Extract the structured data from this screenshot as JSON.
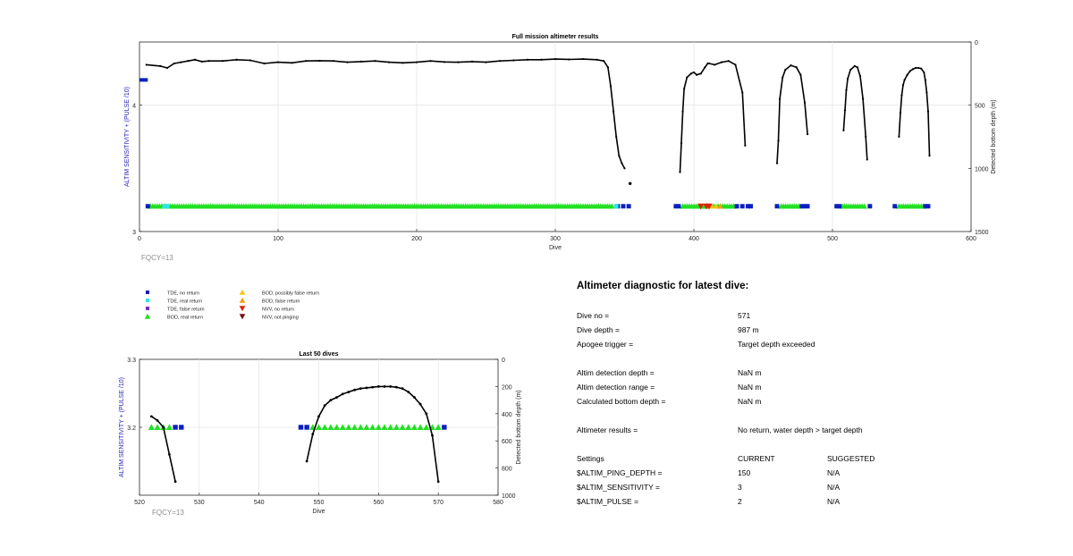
{
  "colors": {
    "axis": "#262626",
    "grid": "#e6e6e6",
    "left_axis_label": "#1f1fb8",
    "fqcy": "#8c8c8c",
    "tde_no_return": "#0a1fbf",
    "tde_real_return": "#2ee6e6",
    "tde_false_return": "#7a2bd6",
    "bod_real_return": "#22e022",
    "bod_possibly_false": "#f5c518",
    "bod_false_return": "#f59b18",
    "nvv_no_return": "#e0200a",
    "nvv_not_pinging": "#7a0c0c",
    "depth_line": "#000000"
  },
  "chart_data": [
    {
      "type": "scatter",
      "name": "full_mission",
      "title": "Full mission altimeter results",
      "xlabel": "Dive",
      "ylabel_left": "ALTIM SENSITIVITY + (PULSE /10)",
      "ylabel_right": "Detected bottom depth (m)",
      "xlim": [
        0,
        600
      ],
      "ylim_left": [
        3,
        4.5
      ],
      "ylim_right": [
        0,
        1500
      ],
      "right_reversed": true,
      "x_ticks": [
        "0",
        "100",
        "200",
        "300",
        "400",
        "500",
        "600"
      ],
      "y_left_ticks": [
        "3",
        "4"
      ],
      "y_right_ticks": [
        "0",
        "500",
        "1000",
        "1500"
      ],
      "grid": true,
      "annotation": "FQCY=13",
      "early_settings": {
        "x": [
          0,
          6
        ],
        "y": 4.2
      },
      "depth_segments": [
        {
          "x": [
            5,
            15,
            20,
            25,
            30,
            35,
            40,
            45,
            50,
            60,
            70,
            80,
            90,
            100,
            110,
            120,
            130,
            140,
            150,
            160,
            170,
            180,
            190,
            200,
            210,
            220,
            230,
            240,
            250,
            260,
            270,
            280,
            290,
            300,
            310,
            320,
            330,
            335,
            338,
            340,
            342,
            344,
            346,
            348,
            350
          ],
          "y": [
            180,
            190,
            205,
            170,
            160,
            150,
            140,
            155,
            150,
            150,
            140,
            145,
            170,
            160,
            165,
            150,
            148,
            150,
            160,
            155,
            150,
            160,
            165,
            160,
            150,
            158,
            160,
            155,
            160,
            150,
            145,
            140,
            140,
            135,
            138,
            135,
            140,
            150,
            200,
            350,
            550,
            750,
            900,
            960,
            1000
          ]
        },
        {
          "x": [
            390,
            391,
            392,
            393,
            395,
            398,
            400,
            402,
            405,
            408,
            410
          ],
          "y": [
            1030,
            800,
            550,
            370,
            280,
            250,
            240,
            260,
            250,
            200,
            170
          ]
        },
        {
          "x": [
            411,
            415,
            420,
            425,
            430,
            435,
            437
          ],
          "y": [
            170,
            180,
            160,
            150,
            180,
            400,
            820
          ]
        },
        {
          "x": [
            460,
            461,
            462,
            464,
            466,
            470,
            474,
            477,
            480,
            482
          ],
          "y": [
            960,
            780,
            450,
            280,
            220,
            185,
            200,
            260,
            480,
            730
          ]
        },
        {
          "x": [
            508,
            509,
            510,
            511,
            513,
            516,
            518,
            520,
            522,
            524,
            525
          ],
          "y": [
            700,
            540,
            380,
            290,
            220,
            190,
            200,
            270,
            450,
            750,
            930
          ]
        },
        {
          "x": [
            548,
            549,
            550,
            551,
            552,
            554,
            556,
            558,
            560,
            562,
            564,
            566,
            567,
            568,
            569,
            570
          ],
          "y": [
            750,
            560,
            420,
            340,
            300,
            260,
            230,
            215,
            205,
            205,
            210,
            240,
            300,
            400,
            550,
            900
          ]
        }
      ],
      "isolated_points": [
        {
          "x": 354,
          "y": 1120
        }
      ],
      "symbol_level": 3.2,
      "tde_no_return_x": [
        6,
        345,
        349,
        353,
        387,
        389,
        431,
        435,
        439,
        441,
        460,
        478,
        480,
        482,
        503,
        505,
        527,
        545,
        567,
        569
      ],
      "tde_real_return_x": [
        18,
        20,
        344
      ],
      "bod_real_return_ranges": [
        [
          8,
          342
        ],
        [
          392,
          430
        ],
        [
          463,
          477
        ],
        [
          507,
          524
        ],
        [
          548,
          566
        ]
      ],
      "bod_possibly_false_x": [
        413,
        416
      ],
      "bod_false_return_x": [
        419
      ],
      "nvv_no_return_x": [
        405,
        409,
        411
      ]
    },
    {
      "type": "scatter",
      "name": "last_50_dives",
      "title": "Last 50 dives",
      "xlabel": "Dive",
      "ylabel_left": "ALTIM SENSITIVITY + (PULSE /10)",
      "ylabel_right": "Detected bottom depth (m)",
      "xlim": [
        520,
        580
      ],
      "ylim_left": [
        3.1,
        3.3
      ],
      "ylim_right": [
        0,
        1000
      ],
      "right_reversed": true,
      "x_ticks": [
        "520",
        "530",
        "540",
        "550",
        "560",
        "570",
        "580"
      ],
      "y_left_ticks": [
        "3.2",
        "3.3"
      ],
      "y_right_ticks": [
        "0",
        "200",
        "400",
        "600",
        "800",
        "1000"
      ],
      "grid": true,
      "annotation": "FQCY=13",
      "symbol_level": 3.2,
      "depth_segments": [
        {
          "x": [
            522,
            523,
            524,
            525,
            526
          ],
          "y": [
            420,
            450,
            500,
            700,
            900
          ]
        },
        {
          "x": [
            548,
            549,
            550,
            551,
            552,
            553,
            554,
            555,
            556,
            557,
            558,
            559,
            560,
            561,
            562,
            563,
            564,
            565,
            566,
            567,
            568,
            569,
            570
          ],
          "y": [
            750,
            550,
            420,
            340,
            300,
            280,
            255,
            240,
            225,
            215,
            210,
            205,
            200,
            200,
            200,
            205,
            215,
            240,
            280,
            330,
            400,
            560,
            900
          ]
        }
      ],
      "tde_no_return_x": [
        526,
        527,
        547,
        548,
        571
      ],
      "bod_real_return_x": [
        522,
        523,
        524,
        525,
        549,
        550,
        551,
        552,
        553,
        554,
        555,
        556,
        557,
        558,
        559,
        560,
        561,
        562,
        563,
        564,
        565,
        566,
        567,
        568,
        569,
        570
      ]
    }
  ],
  "legend": {
    "col1": [
      "TDE, no return",
      "TDE, real return",
      "TDE, false return",
      "BOD, real return"
    ],
    "col2": [
      "BOD, possibly false return",
      "BOD, false return",
      "NVV, no return",
      "NVV, not pinging"
    ]
  },
  "diagnostic": {
    "title": "Altimeter diagnostic for latest dive:",
    "rows": [
      {
        "label": "Dive no =",
        "value": "571"
      },
      {
        "label": "Dive depth =",
        "value": "987 m"
      },
      {
        "label": "Apogee trigger =",
        "value": "Target depth exceeded"
      },
      {
        "label": "Altim detection depth =",
        "value": "NaN m"
      },
      {
        "label": "Altim detection range =",
        "value": "NaN m"
      },
      {
        "label": "Calculated bottom depth =",
        "value": "NaN m"
      },
      {
        "label": "Altimeter results =",
        "value": "No return, water depth > target depth"
      }
    ],
    "settings": {
      "header": {
        "label": "Settings",
        "current": "CURRENT",
        "suggested": "SUGGESTED"
      },
      "rows": [
        {
          "label": "$ALTIM_PING_DEPTH =",
          "current": "150",
          "suggested": "N/A"
        },
        {
          "label": "$ALTIM_SENSITIVITY =",
          "current": "3",
          "suggested": "N/A"
        },
        {
          "label": "$ALTIM_PULSE =",
          "current": "2",
          "suggested": "N/A"
        }
      ]
    }
  }
}
